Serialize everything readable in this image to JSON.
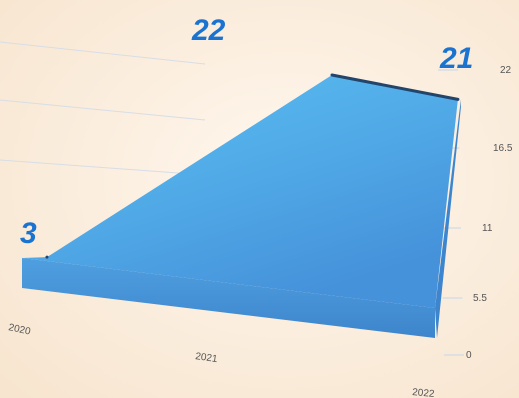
{
  "chart_data": {
    "type": "area",
    "categories": [
      "2020",
      "2021",
      "2022"
    ],
    "values": [
      3,
      22,
      21
    ],
    "y_ticks": [
      "22",
      "16.5",
      "11",
      "5.5",
      "0"
    ],
    "ylim": [
      0,
      22
    ],
    "data_labels": [
      "3",
      "22",
      "21"
    ],
    "grid": true,
    "legend": "none",
    "colors": {
      "background": "#FCEBD6",
      "area_top": "#57B9EE",
      "area_mid": "#4E9FDE",
      "area_side": "#3D86CF",
      "area_edge": "#24446A",
      "data_label": "#1A73D1",
      "tick_label": "#555555",
      "grid": "#D8DDE6"
    }
  }
}
